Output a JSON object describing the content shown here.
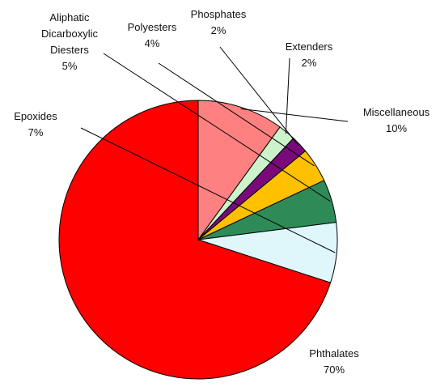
{
  "chart_data": {
    "type": "pie",
    "slices": [
      {
        "label": "Phthalates",
        "value": 70,
        "value_label": "70%",
        "color": "#ff0000"
      },
      {
        "label": "Epoxides",
        "value": 7,
        "value_label": "7%",
        "color": "#dff7fb"
      },
      {
        "label": "Aliphatic Dicarboxylic Diesters",
        "label_lines": [
          "Aliphatic",
          "Dicarboxylic",
          "Diesters"
        ],
        "value": 5,
        "value_label": "5%",
        "color": "#2e8b57"
      },
      {
        "label": "Polyesters",
        "value": 4,
        "value_label": "4%",
        "color": "#ffc000"
      },
      {
        "label": "Phosphates",
        "value": 2,
        "value_label": "2%",
        "color": "#7a0a7a"
      },
      {
        "label": "Extenders",
        "value": 2,
        "value_label": "2%",
        "color": "#ccf3cc"
      },
      {
        "label": "Miscellaneous",
        "value": 10,
        "value_label": "10%",
        "color": "#ff8080"
      }
    ],
    "legend": "none",
    "data_labels": "outside with leader lines"
  }
}
